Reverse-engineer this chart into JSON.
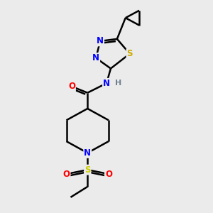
{
  "bg_color": "#ebebeb",
  "atom_colors": {
    "N": "#0000ff",
    "O": "#ff0000",
    "S_thiadiazole": "#ccaa00",
    "S_sulfonyl": "#cccc00",
    "C": "#000000",
    "H": "#708090"
  },
  "bond_color": "#000000",
  "bond_width": 1.8,
  "figsize": [
    3.0,
    3.0
  ],
  "dpi": 100
}
